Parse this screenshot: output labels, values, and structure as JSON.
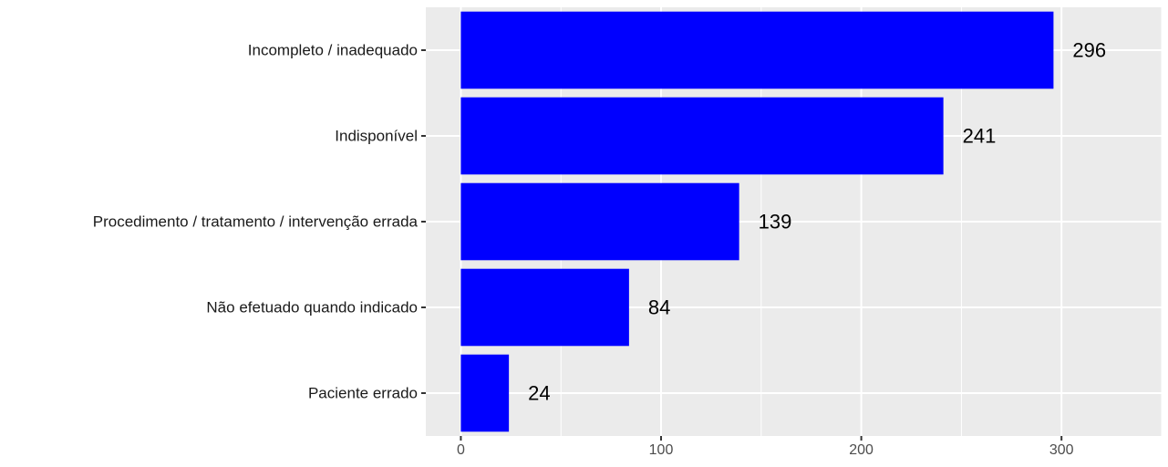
{
  "chart_data": {
    "type": "bar",
    "orientation": "horizontal",
    "categories": [
      "Incompleto / inadequado",
      "Indisponível",
      "Procedimento / tratamento / intervenção errada",
      "Não efetuado quando indicado",
      "Paciente errado"
    ],
    "values": [
      296,
      241,
      139,
      84,
      24
    ],
    "data_labels": [
      "296",
      "241",
      "139",
      "84",
      "24"
    ],
    "title": "",
    "xlabel": "",
    "ylabel": "",
    "xlim": [
      -17.5,
      350
    ],
    "x_ticks": [
      0,
      100,
      200,
      300
    ],
    "x_tick_labels": [
      "0",
      "100",
      "200",
      "300"
    ],
    "grid": true,
    "bar_color": "#0000FF",
    "panel_background": "#EBEBEB",
    "grid_color": "#FFFFFF"
  }
}
